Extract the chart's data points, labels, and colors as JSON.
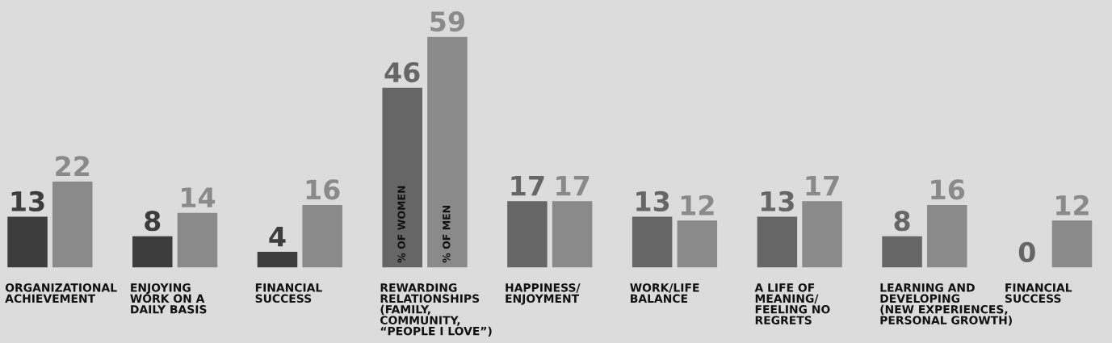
{
  "chart_data": {
    "type": "bar",
    "categories": [
      "ORGANIZATIONAL\nACHIEVEMENT",
      "ENJOYING\nWORK ON A\nDAILY BASIS",
      "FINANCIAL\nSUCCESS",
      "REWARDING\nRELATIONSHIPS\n(FAMILY,\nCOMMUNITY,\n“PEOPLE I LOVE”)",
      "HAPPINESS/\nENJOYMENT",
      "WORK/LIFE\nBALANCE",
      "A LIFE OF\nMEANING/\nFEELING NO\nREGRETS",
      "LEARNING AND\nDEVELOPING\n(NEW EXPERIENCES,\nPERSONAL GROWTH)",
      "FINANCIAL\nSUCCESS"
    ],
    "series": [
      {
        "name": "% OF WOMEN",
        "colors": [
          "#3d3d3d",
          "#3d3d3d",
          "#3d3d3d",
          "#666666",
          "#666666",
          "#666666",
          "#666666",
          "#666666",
          "#666666"
        ],
        "values": [
          13,
          8,
          4,
          46,
          17,
          13,
          13,
          8,
          0
        ]
      },
      {
        "name": "% OF MEN",
        "color": "#8a8a8a",
        "values": [
          22,
          14,
          16,
          59,
          17,
          12,
          17,
          16,
          12
        ]
      }
    ],
    "data_labels": true
  }
}
